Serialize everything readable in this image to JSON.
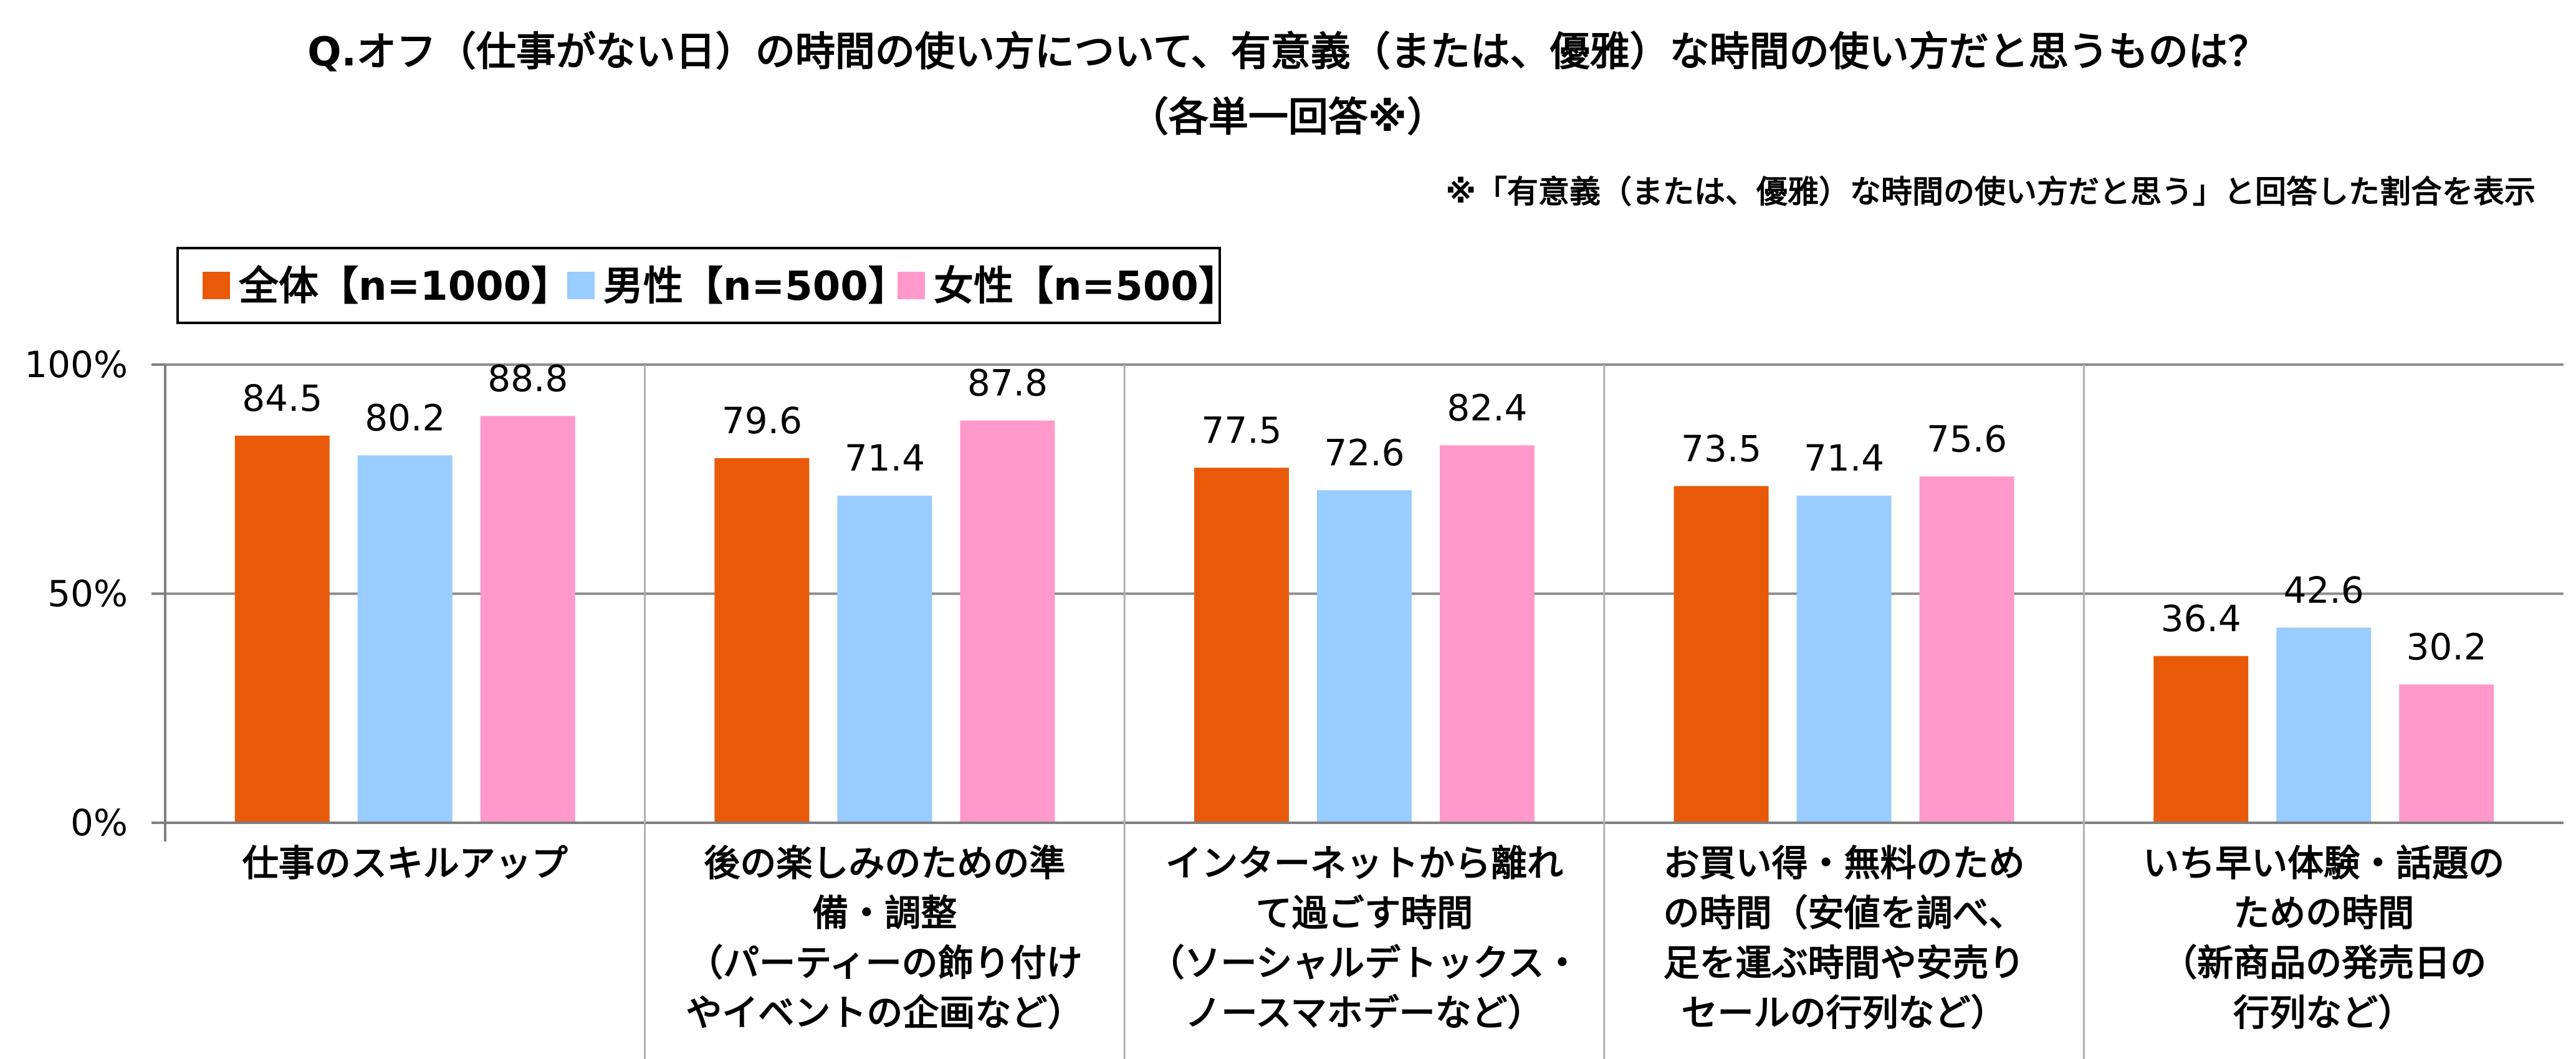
{
  "chart_data": {
    "type": "bar",
    "title": "Q.オフ（仕事がない日）の時間の使い方について、有意義（または、優雅）な時間の使い方だと思うものは？",
    "subtitle": "（各単一回答※）",
    "note": "※「有意義（または、優雅）な時間の使い方だと思う」と回答した割合を表示",
    "ylim": [
      0,
      100
    ],
    "yticks": [
      "0%",
      "50%",
      "100%"
    ],
    "ytick_values": [
      0,
      50,
      100
    ],
    "grid": true,
    "legend_position": "top-left",
    "categories": [
      [
        "仕事のスキルアップ"
      ],
      [
        "後の楽しみのための準",
        "備・調整",
        "（パーティーの飾り付け",
        "やイベントの企画など）"
      ],
      [
        "インターネットから離れ",
        "て過ごす時間",
        "（ソーシャルデトックス・",
        "ノースマホデーなど）"
      ],
      [
        "お買い得・無料のため",
        "の時間（安値を調べ、",
        "足を運ぶ時間や安売り",
        "セールの行列など）"
      ],
      [
        "いち早い体験・話題の",
        "ための時間",
        "（新商品の発売日の",
        "行列など）"
      ]
    ],
    "series": [
      {
        "name": "全体【n=1000】",
        "color": "#e85a0a",
        "values": [
          84.5,
          79.6,
          77.5,
          73.5,
          36.4
        ]
      },
      {
        "name": "男性【n=500】",
        "color": "#99ccff",
        "values": [
          80.2,
          71.4,
          72.6,
          71.4,
          42.6
        ]
      },
      {
        "name": "女性【n=500】",
        "color": "#ff99cc",
        "values": [
          88.8,
          87.8,
          82.4,
          75.6,
          30.2
        ]
      }
    ]
  }
}
